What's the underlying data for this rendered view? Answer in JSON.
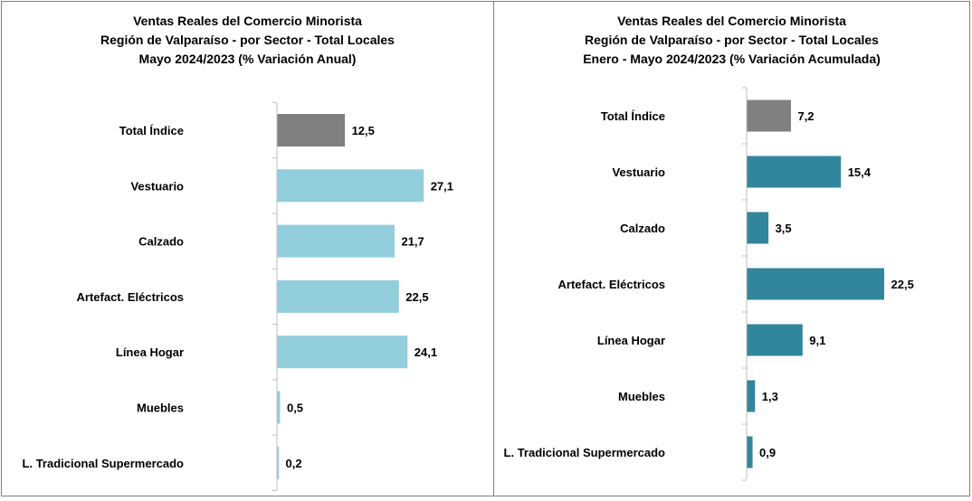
{
  "chart_data": [
    {
      "type": "bar",
      "orientation": "horizontal",
      "title": [
        "Ventas Reales del Comercio Minorista",
        "Región de Valparaíso - por Sector - Total Locales",
        "Mayo 2024/2023 (% Variación Anual)"
      ],
      "categories": [
        "Total Índice",
        "Vestuario",
        "Calzado",
        "Artefact. Eléctricos",
        "Línea Hogar",
        "Muebles",
        "L. Tradicional Supermercado"
      ],
      "values": [
        12.5,
        27.1,
        21.7,
        22.5,
        24.1,
        0.5,
        0.2
      ],
      "value_labels": [
        "12,5",
        "27,1",
        "21,7",
        "22,5",
        "24,1",
        "0,5",
        "0,2"
      ],
      "colors": [
        "#808080",
        "#92cddc",
        "#92cddc",
        "#92cddc",
        "#92cddc",
        "#92cddc",
        "#92cddc"
      ],
      "xlim": [
        0,
        30
      ],
      "grid": false
    },
    {
      "type": "bar",
      "orientation": "horizontal",
      "title": [
        "Ventas Reales del Comercio Minorista",
        "Región de Valparaíso - por Sector  - Total Locales",
        "Enero - Mayo 2024/2023 (% Variación Acumulada)"
      ],
      "categories": [
        "Total Índice",
        "Vestuario",
        "Calzado",
        "Artefact. Eléctricos",
        "Línea Hogar",
        "Muebles",
        "L. Tradicional Supermercado"
      ],
      "values": [
        7.2,
        15.4,
        3.5,
        22.5,
        9.1,
        1.3,
        0.9
      ],
      "value_labels": [
        "7,2",
        "15,4",
        "3,5",
        "22,5",
        "9,1",
        "1,3",
        "0,9"
      ],
      "colors": [
        "#808080",
        "#31859c",
        "#31859c",
        "#31859c",
        "#31859c",
        "#31859c",
        "#31859c"
      ],
      "xlim": [
        0,
        30
      ],
      "grid": false
    }
  ]
}
